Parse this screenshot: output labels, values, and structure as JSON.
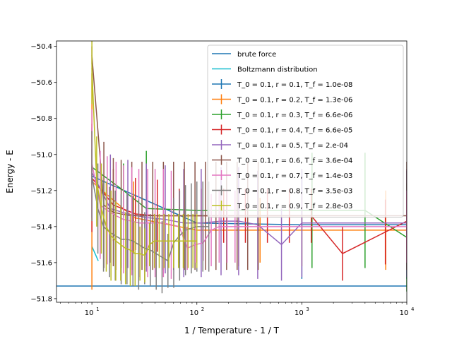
{
  "chart_data": {
    "type": "line",
    "title": "",
    "xlabel": "1 / Temperature - 1 / T",
    "ylabel": "Energy - E",
    "xscale": "log",
    "xlim": [
      4.6,
      10000
    ],
    "ylim": [
      -51.82,
      -50.37
    ],
    "x_tick_labels": [
      {
        "value": 10,
        "base": "10",
        "exp": "1"
      },
      {
        "value": 100,
        "base": "10",
        "exp": "2"
      },
      {
        "value": 1000,
        "base": "10",
        "exp": "3"
      },
      {
        "value": 10000,
        "base": "10",
        "exp": "4"
      }
    ],
    "y_ticks": [
      -51.8,
      -51.6,
      -51.4,
      -51.2,
      -51.0,
      -50.8,
      -50.6,
      -50.4
    ],
    "y_tick_labels": [
      "−51.8",
      "−51.6",
      "−51.4",
      "−51.2",
      "−51.0",
      "−50.8",
      "−50.6",
      "−50.4"
    ],
    "legend_position": "upper right",
    "grid": false,
    "reference_lines": [
      {
        "name": "brute force",
        "color": "#1f77b4",
        "y": -51.73
      },
      {
        "name": "Boltzmann distribution",
        "color": "#17becf",
        "x": [
          10,
          11.5
        ],
        "y": [
          -51.51,
          -51.59
        ]
      }
    ],
    "series": [
      {
        "name": "T_0 = 0.1, r = 0.1, T_f = 1.0e-08",
        "color": "#1f77b4",
        "x": [
          10,
          100,
          1000,
          10000
        ],
        "y": [
          -51.12,
          -51.38,
          -51.39,
          -51.39
        ],
        "err": [
          0.05,
          0.2,
          0.3,
          0.3
        ]
      },
      {
        "name": "T_0 = 0.1, r = 0.2, T_f = 1.3e-06",
        "color": "#ff7f0e",
        "x": [
          10,
          25,
          100,
          250,
          400,
          1000,
          6300,
          10000
        ],
        "y": [
          -51.15,
          -51.35,
          -51.42,
          -51.42,
          -51.42,
          -51.42,
          -51.42,
          -51.42
        ],
        "err": [
          0.6,
          0.2,
          0.2,
          0.2,
          0.18,
          0.2,
          0.22,
          0.18
        ]
      },
      {
        "name": "T_0 = 0.1, r = 0.3, T_f = 6.6e-06",
        "color": "#2ca02c",
        "x": [
          10,
          20,
          33,
          100,
          1250,
          4000,
          10000
        ],
        "y": [
          -51.07,
          -51.2,
          -51.3,
          -51.31,
          -51.31,
          -51.31,
          -51.46
        ],
        "err": [
          0.1,
          0.15,
          0.32,
          0.1,
          0.32,
          0.32,
          0.3
        ]
      },
      {
        "name": "T_0 = 0.1, r = 0.4, T_f = 6.6e-05",
        "color": "#d62728",
        "x": [
          10,
          16,
          26,
          42,
          68,
          110,
          180,
          290,
          470,
          760,
          1230,
          2440,
          6250,
          10000
        ],
        "y": [
          -51.13,
          -51.28,
          -51.33,
          -51.34,
          -51.34,
          -51.34,
          -51.34,
          -51.34,
          -51.34,
          -51.34,
          -51.34,
          -51.55,
          -51.43,
          -51.37
        ],
        "err": [
          0.3,
          0.2,
          0.2,
          0.2,
          0.15,
          0.15,
          0.15,
          0.15,
          0.15,
          0.15,
          0.15,
          0.15,
          0.18,
          0.15
        ]
      },
      {
        "name": "T_0 = 0.1, r = 0.5, T_f = 2.e-04",
        "color": "#9467bd",
        "x": [
          10,
          15,
          22,
          33,
          50,
          75,
          110,
          170,
          250,
          380,
          640,
          1000,
          10000
        ],
        "y": [
          -51.1,
          -51.3,
          -51.33,
          -51.35,
          -51.36,
          -51.38,
          -51.38,
          -51.37,
          -51.37,
          -51.39,
          -51.5,
          -51.38,
          -51.38
        ],
        "err": [
          0.25,
          0.3,
          0.3,
          0.3,
          0.3,
          0.3,
          0.3,
          0.3,
          0.3,
          0.3,
          0.2,
          0.3,
          0.3
        ]
      },
      {
        "name": "T_0 = 0.1, r = 0.6, T_f = 3.6e-04",
        "color": "#8c564b",
        "x": [
          10,
          13,
          16,
          19,
          24,
          30,
          38,
          48,
          60,
          76,
          96,
          121,
          152,
          192,
          242,
          305,
          384,
          10000
        ],
        "y": [
          -50.45,
          -51.28,
          -51.32,
          -51.33,
          -51.34,
          -51.34,
          -51.34,
          -51.34,
          -51.34,
          -51.34,
          -51.34,
          -51.34,
          -51.34,
          -51.34,
          -51.34,
          -51.34,
          -51.34,
          -51.34
        ],
        "err": [
          0.05,
          0.35,
          0.3,
          0.3,
          0.3,
          0.3,
          0.3,
          0.3,
          0.3,
          0.3,
          0.3,
          0.3,
          0.3,
          0.3,
          0.3,
          0.3,
          0.3,
          0.3
        ]
      },
      {
        "name": "T_0 = 0.1, r = 0.7, T_f = 1.4e-03",
        "color": "#e377c2",
        "x": [
          10,
          12,
          14,
          17,
          20,
          24,
          28,
          34,
          40,
          48,
          57,
          68,
          81,
          97,
          115,
          137,
          163,
          194,
          231,
          10000
        ],
        "y": [
          -51.05,
          -51.28,
          -51.31,
          -51.34,
          -51.36,
          -51.37,
          -51.38,
          -51.38,
          -51.38,
          -51.38,
          -51.39,
          -51.4,
          -51.52,
          -51.5,
          -51.49,
          -51.42,
          -51.4,
          -51.4,
          -51.4,
          -51.4
        ],
        "err": [
          0.3,
          0.3,
          0.3,
          0.3,
          0.3,
          0.3,
          0.3,
          0.3,
          0.3,
          0.3,
          0.3,
          0.2,
          0.12,
          0.1,
          0.1,
          0.2,
          0.2,
          0.2,
          0.2,
          0.2
        ]
      },
      {
        "name": "T_0 = 0.1, r = 0.8, T_f = 3.5e-03",
        "color": "#7f7f7f",
        "x": [
          10,
          11.4,
          12.9,
          14.7,
          16.7,
          19,
          21.6,
          24.6,
          27.9,
          31.8,
          36,
          41,
          46.6,
          53,
          60.2,
          68.5,
          77.9,
          88.5,
          100,
          114,
          130
        ],
        "y": [
          -51.12,
          -51.3,
          -51.4,
          -51.43,
          -51.45,
          -51.47,
          -51.47,
          -51.48,
          -51.5,
          -51.52,
          -51.53,
          -51.55,
          -51.57,
          -51.59,
          -51.49,
          -51.45,
          -51.42,
          -51.41,
          -51.4,
          -51.4,
          -51.4
        ],
        "err": [
          0.25,
          0.25,
          0.25,
          0.25,
          0.25,
          0.25,
          0.25,
          0.25,
          0.25,
          0.2,
          0.2,
          0.2,
          0.2,
          0.15,
          0.25,
          0.25,
          0.25,
          0.25,
          0.25,
          0.25,
          0.25
        ]
      },
      {
        "name": "T_0 = 0.1, r = 0.9, T_f = 2.8e-03",
        "color": "#bcbd22",
        "x": [
          10,
          11.1,
          12.3,
          13.7,
          15.2,
          16.9,
          18.8,
          20.9,
          23.2,
          25.8,
          28.7,
          31.9,
          35.4,
          39.4,
          43.8,
          48.6,
          54,
          60,
          66.8,
          74.2,
          82.5,
          91.7,
          100
        ],
        "y": [
          -50.52,
          -51.15,
          -51.3,
          -51.4,
          -51.45,
          -51.48,
          -51.5,
          -51.52,
          -51.53,
          -51.55,
          -51.55,
          -51.56,
          -51.5,
          -51.48,
          -51.48,
          -51.48,
          -51.48,
          -51.48,
          -51.48,
          -51.48,
          -51.48,
          -51.48,
          -51.48
        ],
        "err": [
          0.2,
          0.25,
          0.25,
          0.25,
          0.25,
          0.22,
          0.2,
          0.2,
          0.2,
          0.18,
          0.15,
          0.15,
          0.12,
          0.15,
          0.15,
          0.15,
          0.15,
          0.15,
          0.15,
          0.15,
          0.15,
          0.15,
          0.15
        ]
      }
    ]
  }
}
